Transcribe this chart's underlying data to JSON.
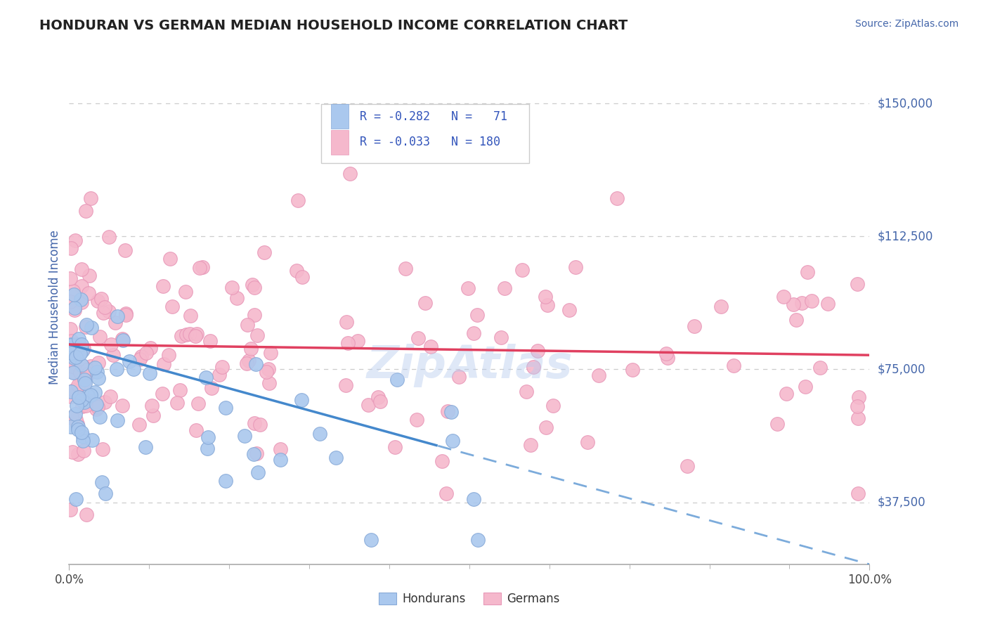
{
  "title": "HONDURAN VS GERMAN MEDIAN HOUSEHOLD INCOME CORRELATION CHART",
  "source_text": "Source: ZipAtlas.com",
  "ylabel": "Median Household Income",
  "xlim": [
    0.0,
    100.0
  ],
  "ylim": [
    20000,
    165000
  ],
  "yticks": [
    37500,
    75000,
    112500,
    150000
  ],
  "ytick_labels": [
    "$37,500",
    "$75,000",
    "$112,500",
    "$150,000"
  ],
  "xtick_labels": [
    "0.0%",
    "100.0%"
  ],
  "background_color": "#ffffff",
  "grid_color": "#cccccc",
  "title_color": "#222222",
  "title_fontsize": 14,
  "legend_color": "#3355bb",
  "honduran_color": "#aac8ee",
  "honduran_edge": "#88aad8",
  "german_color": "#f5b8cc",
  "german_edge": "#e898b8",
  "trend_honduran_color": "#4488cc",
  "trend_german_color": "#e04060",
  "watermark_color": "#b8ccee",
  "source_color": "#4466aa",
  "axis_label_color": "#4466aa",
  "ytick_color": "#4466aa",
  "honduran_trend_x0": 0.0,
  "honduran_trend_y0": 82000,
  "honduran_trend_x1": 100.0,
  "honduran_trend_y1": 20000,
  "honduran_solid_end": 46,
  "german_trend_y0": 82000,
  "german_trend_y1": 79000
}
